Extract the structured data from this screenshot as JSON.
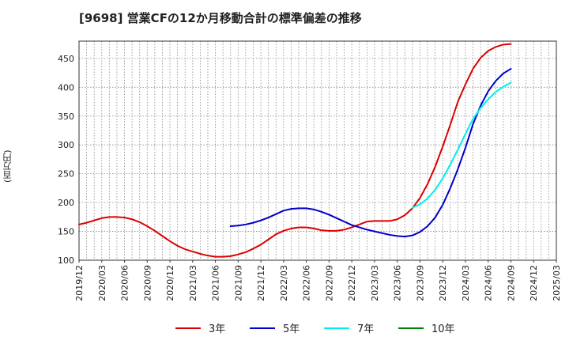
{
  "title": "[9698]  営業CFの12か月移動合計の標準偏差の推移",
  "chart_data": {
    "type": "line",
    "title": "[9698]  営業CFの12か月移動合計の標準偏差の推移",
    "ylabel": "(百万円)",
    "xlabel": "",
    "ylim": [
      100,
      480
    ],
    "yticks": [
      100,
      150,
      200,
      250,
      300,
      350,
      400,
      450
    ],
    "xticks": [
      "2019/12",
      "2020/03",
      "2020/06",
      "2020/09",
      "2020/12",
      "2021/03",
      "2021/06",
      "2021/09",
      "2021/12",
      "2022/03",
      "2022/06",
      "2022/09",
      "2022/12",
      "2023/03",
      "2023/06",
      "2023/09",
      "2023/12",
      "2024/03",
      "2024/06",
      "2024/09",
      "2024/12",
      "2025/03"
    ],
    "grid": true,
    "legend_position": "bottom",
    "series": [
      {
        "name": "3年",
        "color": "#dd0000",
        "x": [
          "2019/12",
          "2020/01",
          "2020/02",
          "2020/03",
          "2020/04",
          "2020/05",
          "2020/06",
          "2020/07",
          "2020/08",
          "2020/09",
          "2020/10",
          "2020/11",
          "2020/12",
          "2021/01",
          "2021/02",
          "2021/03",
          "2021/04",
          "2021/05",
          "2021/06",
          "2021/07",
          "2021/08",
          "2021/09",
          "2021/10",
          "2021/11",
          "2021/12",
          "2022/01",
          "2022/02",
          "2022/03",
          "2022/04",
          "2022/05",
          "2022/06",
          "2022/07",
          "2022/08",
          "2022/09",
          "2022/10",
          "2022/11",
          "2022/12",
          "2023/01",
          "2023/02",
          "2023/03",
          "2023/04",
          "2023/05",
          "2023/06",
          "2023/07",
          "2023/08",
          "2023/09",
          "2023/10",
          "2023/11",
          "2023/12",
          "2024/01",
          "2024/02",
          "2024/03",
          "2024/04",
          "2024/05",
          "2024/06",
          "2024/07",
          "2024/08",
          "2024/09"
        ],
        "values": [
          162,
          165,
          169,
          173,
          175,
          175,
          174,
          171,
          166,
          159,
          151,
          142,
          133,
          125,
          119,
          115,
          111,
          108,
          106,
          106,
          107,
          110,
          114,
          120,
          127,
          136,
          145,
          151,
          155,
          157,
          157,
          155,
          152,
          151,
          151,
          153,
          157,
          162,
          167,
          168,
          168,
          168,
          171,
          178,
          190,
          208,
          232,
          262,
          297,
          335,
          375,
          405,
          432,
          451,
          463,
          470,
          474,
          475
        ]
      },
      {
        "name": "5年",
        "color": "#0000cc",
        "x": [
          "2021/08",
          "2021/09",
          "2021/10",
          "2021/11",
          "2021/12",
          "2022/01",
          "2022/02",
          "2022/03",
          "2022/04",
          "2022/05",
          "2022/06",
          "2022/07",
          "2022/08",
          "2022/09",
          "2022/10",
          "2022/11",
          "2022/12",
          "2023/01",
          "2023/02",
          "2023/03",
          "2023/04",
          "2023/05",
          "2023/06",
          "2023/07",
          "2023/08",
          "2023/09",
          "2023/10",
          "2023/11",
          "2023/12",
          "2024/01",
          "2024/02",
          "2024/03",
          "2024/04",
          "2024/05",
          "2024/06",
          "2024/07",
          "2024/08",
          "2024/09"
        ],
        "values": [
          159,
          160,
          162,
          165,
          169,
          174,
          180,
          186,
          189,
          190,
          190,
          188,
          184,
          179,
          173,
          167,
          161,
          157,
          153,
          150,
          147,
          144,
          142,
          141,
          143,
          149,
          159,
          174,
          196,
          225,
          258,
          295,
          336,
          368,
          393,
          411,
          424,
          432
        ]
      },
      {
        "name": "7年",
        "color": "#00eeee",
        "x": [
          "2023/08",
          "2023/09",
          "2023/10",
          "2023/11",
          "2023/12",
          "2024/01",
          "2024/02",
          "2024/03",
          "2024/04",
          "2024/05",
          "2024/06",
          "2024/07",
          "2024/08",
          "2024/09"
        ],
        "values": [
          191,
          197,
          207,
          222,
          242,
          266,
          292,
          319,
          345,
          364,
          379,
          392,
          401,
          408
        ]
      },
      {
        "name": "10年",
        "color": "#008000",
        "x": [],
        "values": []
      }
    ]
  }
}
